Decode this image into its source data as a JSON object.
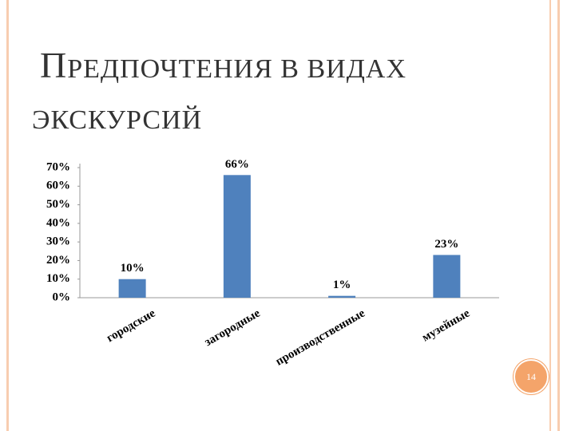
{
  "chart_data": {
    "type": "bar",
    "title": "ПРЕДПОЧТЕНИЯ В ВИДАХ ЭКСКУРСИЙ",
    "categories": [
      "городские",
      "загородные",
      "производственные",
      "музейные"
    ],
    "values": [
      10,
      66,
      1,
      23
    ],
    "value_labels": [
      "10%",
      "66%",
      "1%",
      "23%"
    ],
    "color": "#4f81bd",
    "ylim": [
      0,
      70
    ],
    "yticks": [
      {
        "value": 0,
        "label": "0%"
      },
      {
        "value": 10,
        "label": "10%"
      },
      {
        "value": 20,
        "label": "20%"
      },
      {
        "value": 30,
        "label": "30%"
      },
      {
        "value": 40,
        "label": "40%"
      },
      {
        "value": 50,
        "label": "50%"
      },
      {
        "value": 60,
        "label": "60%"
      },
      {
        "value": 70,
        "label": "70%"
      }
    ],
    "grid": false
  },
  "slide_number": "14"
}
